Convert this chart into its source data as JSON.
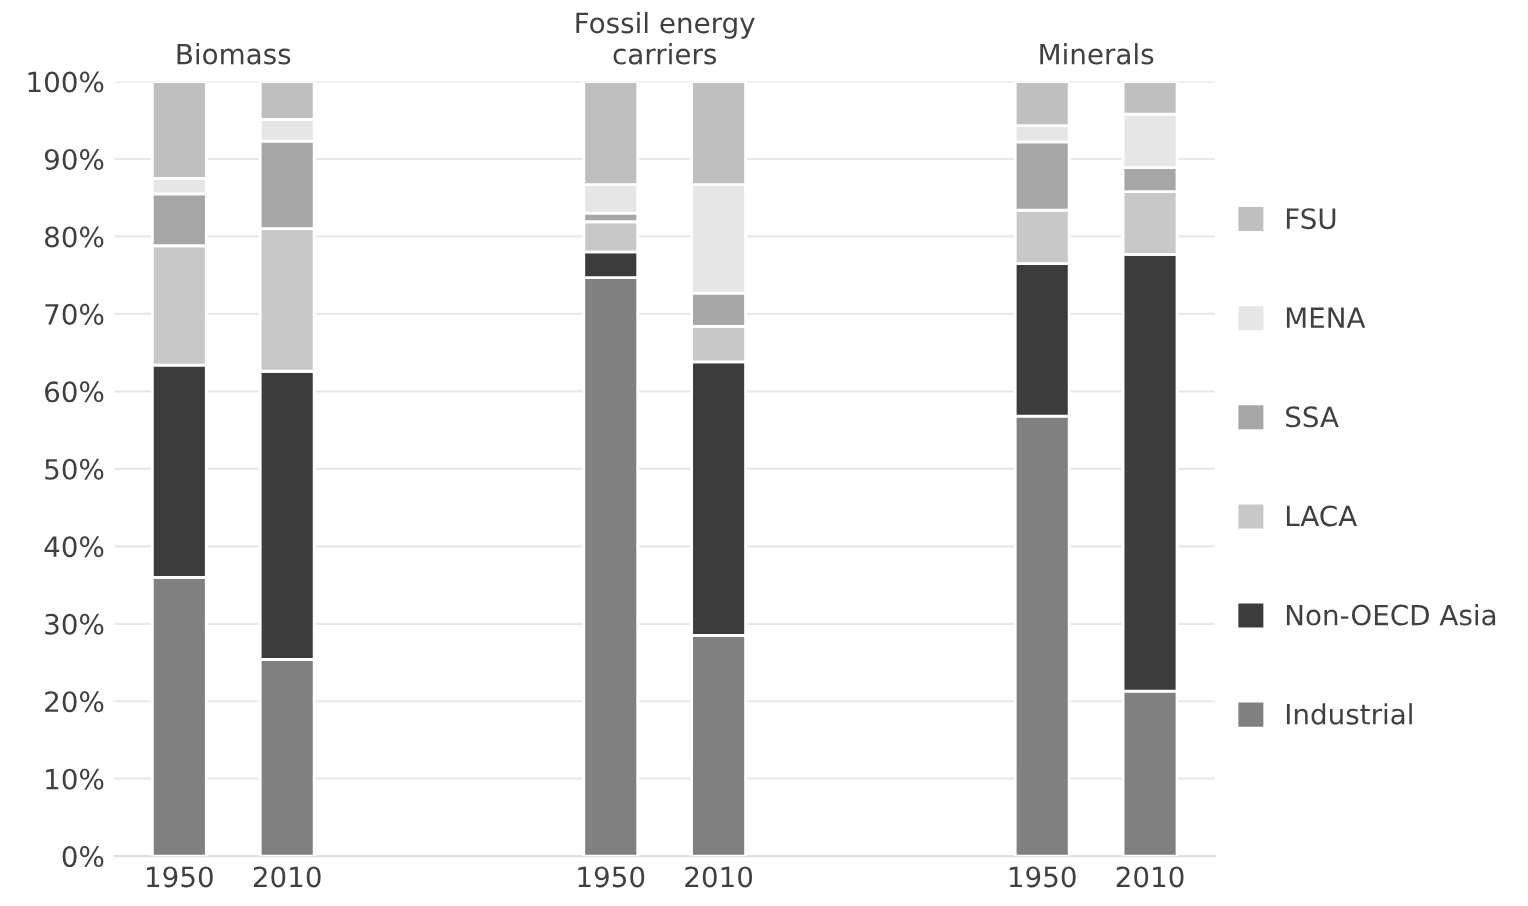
{
  "chart_data": {
    "type": "bar",
    "stacked": true,
    "categories": [
      "1950",
      "2010",
      null,
      null,
      "1950",
      "2010",
      null,
      null,
      "1950",
      "2010"
    ],
    "annotations": [
      "Biomass",
      "Fossil energy\ncarriers",
      "Minerals"
    ],
    "series": [
      {
        "name": "Industrial",
        "color": "#808080",
        "values": [
          36.0,
          25.4,
          null,
          null,
          74.7,
          28.5,
          null,
          null,
          56.8,
          21.3
        ]
      },
      {
        "name": "Non-OECD Asia",
        "color": "#3c3c3c",
        "values": [
          27.4,
          37.2,
          null,
          null,
          3.3,
          35.3,
          null,
          null,
          19.7,
          56.4
        ]
      },
      {
        "name": "LACA",
        "color": "#c8c8c8",
        "values": [
          15.4,
          18.4,
          null,
          null,
          3.9,
          4.6,
          null,
          null,
          6.9,
          8.1
        ]
      },
      {
        "name": "SSA",
        "color": "#a6a6a6",
        "values": [
          6.7,
          11.3,
          null,
          null,
          1.1,
          4.3,
          null,
          null,
          8.8,
          3.1
        ]
      },
      {
        "name": "MENA",
        "color": "#e6e6e6",
        "values": [
          2.0,
          2.8,
          null,
          null,
          3.7,
          14.0,
          null,
          null,
          2.1,
          6.9
        ]
      },
      {
        "name": "FSU",
        "color": "#bfbfbf",
        "values": [
          12.5,
          4.9,
          null,
          null,
          13.3,
          13.3,
          null,
          null,
          5.7,
          4.2
        ]
      }
    ],
    "ylim": [
      0,
      100
    ],
    "yticks": [
      {
        "value": 0,
        "label": "0%"
      },
      {
        "value": 10,
        "label": "10%"
      },
      {
        "value": 20,
        "label": "20%"
      },
      {
        "value": 30,
        "label": "30%"
      },
      {
        "value": 40,
        "label": "40%"
      },
      {
        "value": 50,
        "label": "50%"
      },
      {
        "value": 60,
        "label": "60%"
      },
      {
        "value": 70,
        "label": "70%"
      },
      {
        "value": 80,
        "label": "80%"
      },
      {
        "value": 90,
        "label": "90%"
      },
      {
        "value": 100,
        "label": "100%"
      }
    ],
    "grid": "y",
    "legend": "right"
  }
}
